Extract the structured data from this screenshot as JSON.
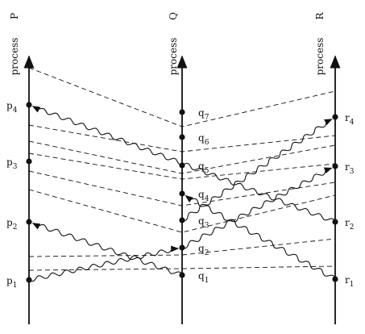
{
  "processes": [
    {
      "id": "P",
      "letter": "P",
      "caption": "process"
    },
    {
      "id": "Q",
      "letter": "Q",
      "caption": "process"
    },
    {
      "id": "R",
      "letter": "R",
      "caption": "process"
    }
  ],
  "events": {
    "P": [
      {
        "id": "p1",
        "base": "p",
        "sub": "1"
      },
      {
        "id": "p2",
        "base": "p",
        "sub": "2"
      },
      {
        "id": "p3",
        "base": "p",
        "sub": "3"
      },
      {
        "id": "p4",
        "base": "p",
        "sub": "4"
      }
    ],
    "Q": [
      {
        "id": "q1",
        "base": "q",
        "sub": "1"
      },
      {
        "id": "q2",
        "base": "q",
        "sub": "2"
      },
      {
        "id": "q3",
        "base": "q",
        "sub": "3"
      },
      {
        "id": "q4",
        "base": "q",
        "sub": "4"
      },
      {
        "id": "q5",
        "base": "q",
        "sub": "5"
      },
      {
        "id": "q6",
        "base": "q",
        "sub": "6"
      },
      {
        "id": "q7",
        "base": "q",
        "sub": "7"
      }
    ],
    "R": [
      {
        "id": "r1",
        "base": "r",
        "sub": "1"
      },
      {
        "id": "r2",
        "base": "r",
        "sub": "2"
      },
      {
        "id": "r3",
        "base": "r",
        "sub": "3"
      },
      {
        "id": "r4",
        "base": "r",
        "sub": "4"
      }
    ]
  },
  "messages": [
    {
      "from": "p1",
      "to": "q2"
    },
    {
      "from": "q1",
      "to": "p2"
    },
    {
      "from": "q2",
      "to": "r3"
    },
    {
      "from": "q3",
      "to": "r4"
    },
    {
      "from": "r1",
      "to": "q4"
    },
    {
      "from": "r2",
      "to": "p4"
    }
  ],
  "tick_lines_count_note": "",
  "colors": {
    "ink": "#111111",
    "background": "#ffffff"
  }
}
